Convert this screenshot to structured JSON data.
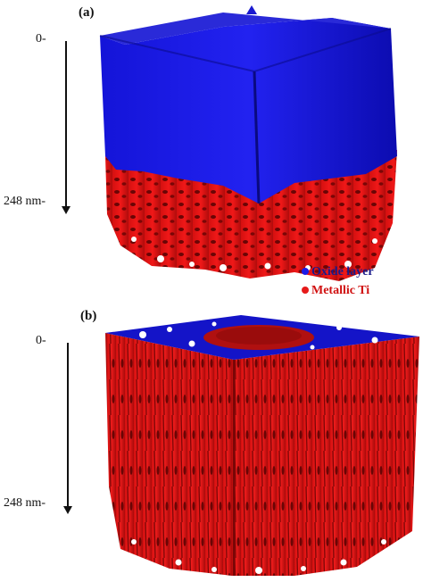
{
  "panels": [
    {
      "label": "(a)",
      "depth_top": "0-",
      "depth_bottom": "248 nm-"
    },
    {
      "label": "(b)",
      "depth_top": "0-",
      "depth_bottom": "248 nm-"
    }
  ],
  "legend": {
    "items": [
      {
        "label": "Oxide layer",
        "color": "#1a1ae6"
      },
      {
        "label": "Metallic Ti",
        "color": "#e61a1a"
      }
    ]
  },
  "colors": {
    "oxide": "#1010e0",
    "oxide_dark": "#0a0a90",
    "metal": "#e01010",
    "metal_dark": "#8a0808"
  }
}
